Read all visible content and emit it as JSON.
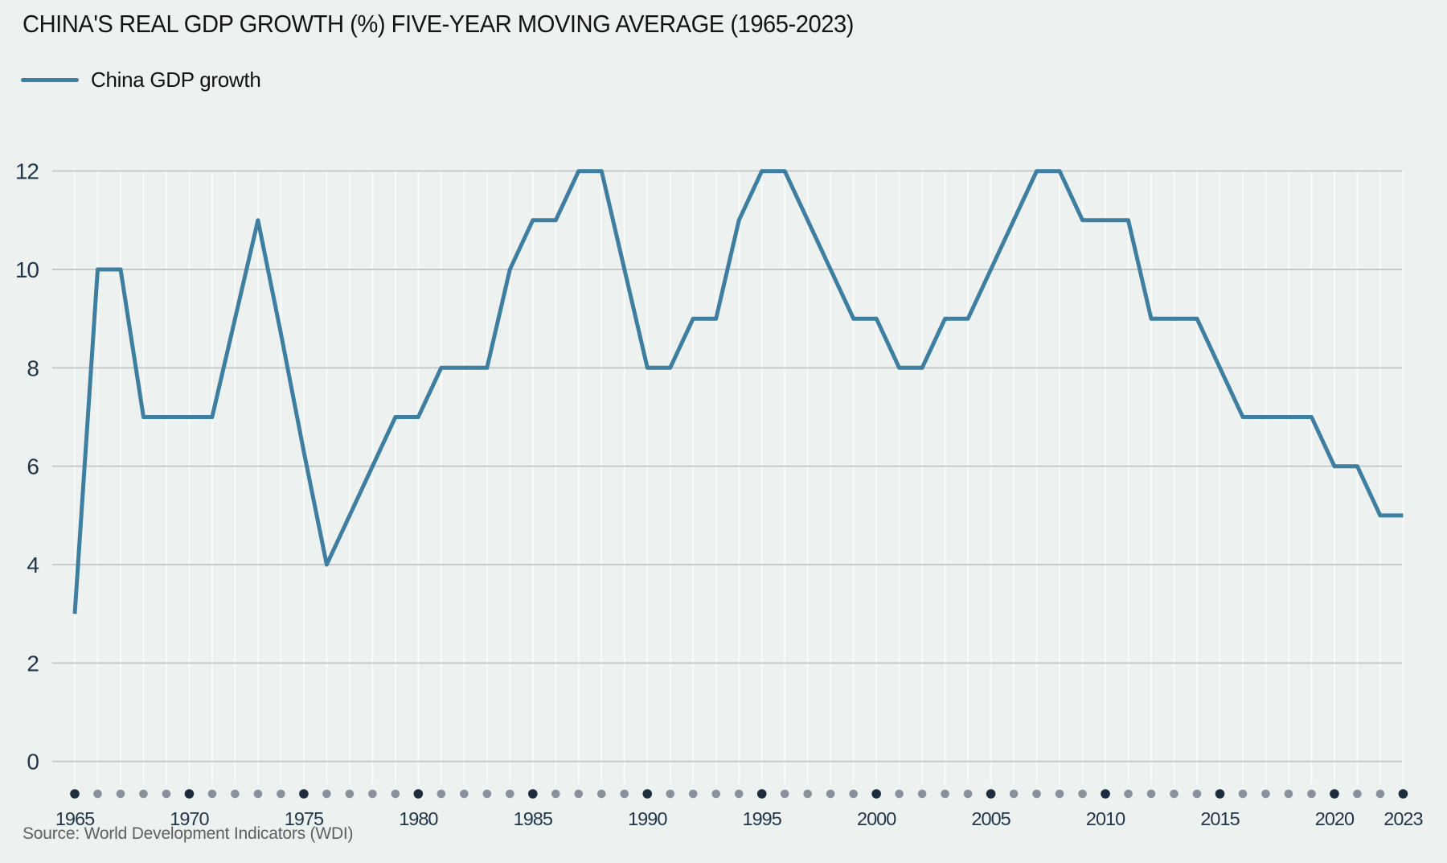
{
  "title": "CHINA'S REAL GDP GROWTH (%) FIVE-YEAR MOVING AVERAGE (1965-2023)",
  "legend": {
    "label": "China GDP growth"
  },
  "source": "Source: World Development Indicators (WDI)",
  "colors": {
    "background": "#edf2f0",
    "line": "#3d7ea1",
    "h_gridline": "#c6cacb",
    "v_gridline": "#fafcfa",
    "axis_text": "#22364a",
    "dot_major": "#1d2d3f",
    "dot_minor": "#8b919c"
  },
  "chart_data": {
    "type": "line",
    "title": "CHINA'S REAL GDP GROWTH (%) FIVE-YEAR MOVING AVERAGE (1965-2023)",
    "xlabel": "",
    "ylabel": "",
    "ylim": [
      0,
      12
    ],
    "yticks": [
      0,
      2,
      4,
      6,
      8,
      10,
      12
    ],
    "xticks": [
      1965,
      1970,
      1975,
      1980,
      1985,
      1990,
      1995,
      2000,
      2005,
      2010,
      2015,
      2020,
      2023
    ],
    "x_range": [
      1965,
      2023
    ],
    "grid": true,
    "legend_position": "top-left",
    "axis_dot_years_major": [
      1965,
      1970,
      1975,
      1980,
      1985,
      1990,
      1995,
      2000,
      2005,
      2010,
      2015,
      2020,
      2023
    ],
    "series": [
      {
        "name": "China GDP growth",
        "color": "#3d7ea1",
        "x": [
          1965,
          1966,
          1967,
          1968,
          1969,
          1970,
          1971,
          1972,
          1973,
          1974,
          1975,
          1976,
          1977,
          1978,
          1979,
          1980,
          1981,
          1982,
          1983,
          1984,
          1985,
          1986,
          1987,
          1988,
          1989,
          1990,
          1991,
          1992,
          1993,
          1994,
          1995,
          1996,
          1997,
          1998,
          1999,
          2000,
          2001,
          2002,
          2003,
          2004,
          2005,
          2006,
          2007,
          2008,
          2009,
          2010,
          2011,
          2012,
          2013,
          2014,
          2015,
          2016,
          2017,
          2018,
          2019,
          2020,
          2021,
          2022,
          2023
        ],
        "values": [
          3,
          10,
          10,
          7,
          7,
          7,
          7,
          9,
          11,
          8.7,
          6.3,
          4,
          5,
          6,
          7,
          7,
          8,
          8,
          8,
          10,
          11,
          11,
          12,
          12,
          10,
          8,
          8,
          9,
          9,
          11,
          12,
          12,
          11,
          10,
          9,
          9,
          8,
          8,
          9,
          9,
          10,
          11,
          12,
          12,
          11,
          11,
          11,
          9,
          9,
          9,
          8,
          7,
          7,
          7,
          7,
          6,
          6,
          5,
          5
        ]
      }
    ]
  }
}
